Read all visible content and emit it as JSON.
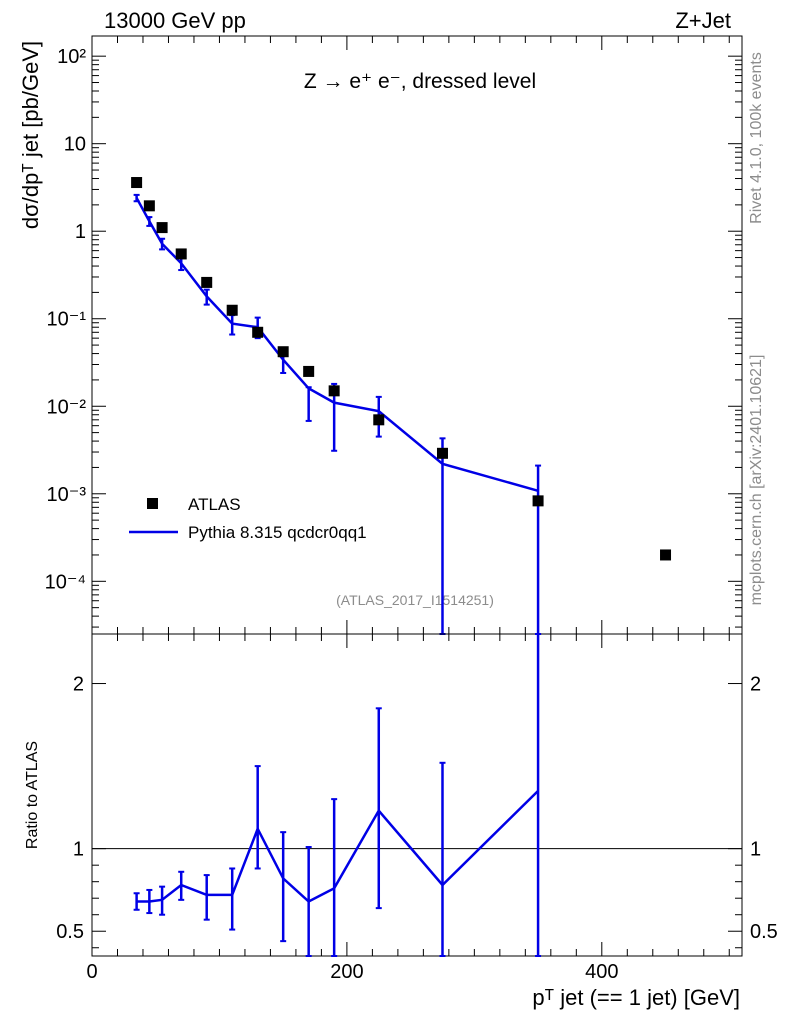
{
  "header": {
    "energy_label": "13000 GeV pp",
    "process_label": "Z+Jet"
  },
  "side_labels": {
    "rivet": "Rivet 4.1.0,  100k events",
    "mcplots": "mcplots.cern.ch [arXiv:2401.10621]"
  },
  "colors": {
    "data": "#000000",
    "mc": "#0000e6",
    "side_text": "#8c8c8c"
  },
  "chart_data": [
    {
      "type": "scatter",
      "panel": "main",
      "title": "Z → e⁺ e⁻, dressed level",
      "analysis_label": "(ATLAS_2017_I1514251)",
      "ylabel": "dσ/dpᵀ jet [pb/GeV]",
      "yscale": "log",
      "ylim": [
        2.5e-05,
        170
      ],
      "xlim": [
        0,
        510
      ],
      "y_tick_labels": [
        "10⁻⁴",
        "10⁻³",
        "10⁻²",
        "10⁻¹",
        "1",
        "10",
        "10²"
      ],
      "legend": {
        "position": "bottom-left",
        "entries": [
          "ATLAS",
          "Pythia 8.315 qcdcr0qq1"
        ]
      },
      "series": [
        {
          "name": "ATLAS",
          "style": "markers",
          "x": [
            35,
            45,
            55,
            70,
            90,
            110,
            130,
            150,
            170,
            190,
            225,
            275,
            350,
            450
          ],
          "y": [
            3.6,
            1.95,
            1.1,
            0.55,
            0.26,
            0.125,
            0.07,
            0.042,
            0.025,
            0.015,
            0.007,
            0.0029,
            0.00083,
            0.0002
          ]
        },
        {
          "name": "Pythia 8.315 qcdcr0qq1",
          "style": "line",
          "x": [
            35,
            45,
            55,
            70,
            90,
            110,
            130,
            150,
            170,
            190,
            225,
            275,
            350
          ],
          "y": [
            2.4,
            1.3,
            0.72,
            0.43,
            0.18,
            0.088,
            0.08,
            0.034,
            0.016,
            0.011,
            0.0088,
            0.0022,
            0.00108
          ],
          "err_low": [
            2.2,
            1.15,
            0.62,
            0.36,
            0.145,
            0.066,
            0.06,
            0.024,
            0.0068,
            0.0031,
            0.0045,
            1e-07,
            1e-07
          ],
          "err_high": [
            2.6,
            1.45,
            0.82,
            0.5,
            0.215,
            0.11,
            0.103,
            0.044,
            0.0165,
            0.018,
            0.0128,
            0.0043,
            0.0021
          ]
        }
      ]
    },
    {
      "type": "line",
      "panel": "ratio",
      "ylabel": "Ratio to ATLAS",
      "xlabel": "pᵀ jet (== 1 jet) [GeV]",
      "ylim": [
        0.35,
        2.3
      ],
      "xlim": [
        0,
        510
      ],
      "reference_line": 1,
      "y_tick_labels": [
        "0.5",
        "1",
        "2"
      ],
      "x_tick_labels": [
        "0",
        "200",
        "400"
      ],
      "series": [
        {
          "name": "Pythia 8.315 qcdcr0qq1 / ATLAS",
          "x": [
            35,
            45,
            55,
            70,
            90,
            110,
            130,
            150,
            170,
            190,
            225,
            275,
            350
          ],
          "y": [
            0.68,
            0.68,
            0.69,
            0.78,
            0.72,
            0.72,
            1.12,
            0.82,
            0.68,
            0.76,
            1.23,
            0.78,
            1.35
          ],
          "err_low": [
            0.63,
            0.61,
            0.6,
            0.69,
            0.57,
            0.51,
            0.88,
            0.44,
            0.05,
            0.05,
            0.64,
            0.05,
            0.05
          ],
          "err_high": [
            0.73,
            0.75,
            0.77,
            0.86,
            0.84,
            0.88,
            1.5,
            1.1,
            1.01,
            1.3,
            1.85,
            1.52,
            2.35
          ]
        }
      ]
    }
  ]
}
